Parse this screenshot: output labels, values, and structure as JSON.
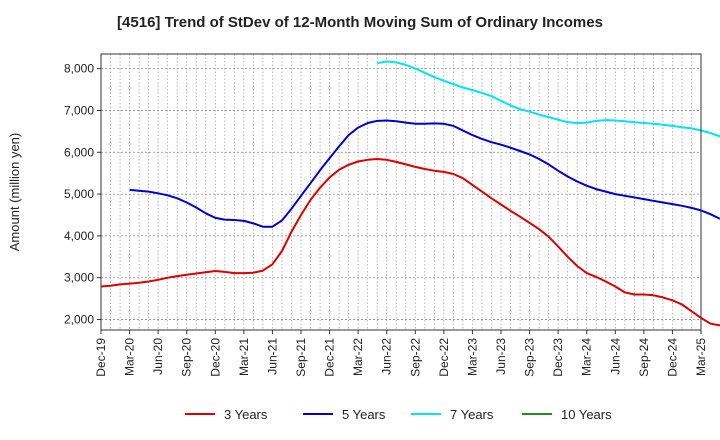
{
  "chart_data": {
    "type": "line",
    "title": "[4516]  Trend of StDev of 12-Month Moving Sum of Ordinary Incomes",
    "ylabel": "Amount (million yen)",
    "xlabel": "",
    "ylim": [
      1750,
      8350
    ],
    "yticks": [
      2000,
      3000,
      4000,
      5000,
      6000,
      7000,
      8000
    ],
    "ytick_labels": [
      "2,000",
      "3,000",
      "4,000",
      "5,000",
      "6,000",
      "7,000",
      "8,000"
    ],
    "xticks": [
      "Dec-19",
      "Mar-20",
      "Jun-20",
      "Sep-20",
      "Dec-20",
      "Mar-21",
      "Jun-21",
      "Sep-21",
      "Dec-21",
      "Mar-22",
      "Jun-22",
      "Sep-22",
      "Dec-22",
      "Mar-23",
      "Jun-23",
      "Sep-23",
      "Dec-23",
      "Mar-24",
      "Jun-24",
      "Sep-24",
      "Dec-24",
      "Mar-25"
    ],
    "grid": true,
    "legend_position": "bottom",
    "series": [
      {
        "name": "3 Years",
        "color": "#dd0000",
        "points": [
          [
            0,
            2790
          ],
          [
            1,
            2810
          ],
          [
            2,
            2840
          ],
          [
            3,
            2860
          ],
          [
            4,
            2880
          ],
          [
            5,
            2910
          ],
          [
            6,
            2950
          ],
          [
            7,
            3000
          ],
          [
            8,
            3040
          ],
          [
            9,
            3070
          ],
          [
            10,
            3100
          ],
          [
            11,
            3130
          ],
          [
            12,
            3160
          ],
          [
            13,
            3140
          ],
          [
            14,
            3110
          ],
          [
            15,
            3110
          ],
          [
            16,
            3120
          ],
          [
            17,
            3170
          ],
          [
            18,
            3320
          ],
          [
            19,
            3640
          ],
          [
            20,
            4100
          ],
          [
            21,
            4500
          ],
          [
            22,
            4860
          ],
          [
            23,
            5150
          ],
          [
            24,
            5400
          ],
          [
            25,
            5580
          ],
          [
            26,
            5700
          ],
          [
            27,
            5780
          ],
          [
            28,
            5820
          ],
          [
            29,
            5840
          ],
          [
            30,
            5820
          ],
          [
            31,
            5770
          ],
          [
            32,
            5710
          ],
          [
            33,
            5650
          ],
          [
            34,
            5600
          ],
          [
            35,
            5560
          ],
          [
            36,
            5530
          ],
          [
            37,
            5480
          ],
          [
            38,
            5380
          ],
          [
            39,
            5220
          ],
          [
            40,
            5060
          ],
          [
            41,
            4900
          ],
          [
            42,
            4750
          ],
          [
            43,
            4600
          ],
          [
            44,
            4460
          ],
          [
            45,
            4310
          ],
          [
            46,
            4160
          ],
          [
            47,
            3980
          ],
          [
            48,
            3750
          ],
          [
            49,
            3500
          ],
          [
            50,
            3280
          ],
          [
            51,
            3110
          ],
          [
            52,
            3020
          ],
          [
            53,
            2910
          ],
          [
            54,
            2790
          ],
          [
            55,
            2650
          ],
          [
            56,
            2600
          ],
          [
            57,
            2600
          ],
          [
            58,
            2580
          ],
          [
            59,
            2530
          ],
          [
            60,
            2460
          ],
          [
            61,
            2360
          ],
          [
            62,
            2200
          ],
          [
            63,
            2040
          ],
          [
            64,
            1900
          ],
          [
            65,
            1860
          ]
        ]
      },
      {
        "name": "5 Years",
        "color": "#0000cc",
        "points": [
          [
            3,
            5100
          ],
          [
            4,
            5080
          ],
          [
            5,
            5060
          ],
          [
            6,
            5020
          ],
          [
            7,
            4970
          ],
          [
            8,
            4900
          ],
          [
            9,
            4800
          ],
          [
            10,
            4680
          ],
          [
            11,
            4540
          ],
          [
            12,
            4430
          ],
          [
            13,
            4390
          ],
          [
            14,
            4380
          ],
          [
            15,
            4360
          ],
          [
            16,
            4300
          ],
          [
            17,
            4220
          ],
          [
            18,
            4220
          ],
          [
            19,
            4370
          ],
          [
            20,
            4650
          ],
          [
            21,
            4960
          ],
          [
            22,
            5260
          ],
          [
            23,
            5570
          ],
          [
            24,
            5860
          ],
          [
            25,
            6140
          ],
          [
            26,
            6410
          ],
          [
            27,
            6590
          ],
          [
            28,
            6700
          ],
          [
            29,
            6750
          ],
          [
            30,
            6760
          ],
          [
            31,
            6740
          ],
          [
            32,
            6710
          ],
          [
            33,
            6680
          ],
          [
            34,
            6680
          ],
          [
            35,
            6690
          ],
          [
            36,
            6680
          ],
          [
            37,
            6630
          ],
          [
            38,
            6520
          ],
          [
            39,
            6410
          ],
          [
            40,
            6320
          ],
          [
            41,
            6240
          ],
          [
            42,
            6180
          ],
          [
            43,
            6110
          ],
          [
            44,
            6030
          ],
          [
            45,
            5950
          ],
          [
            46,
            5840
          ],
          [
            47,
            5710
          ],
          [
            48,
            5560
          ],
          [
            49,
            5420
          ],
          [
            50,
            5300
          ],
          [
            51,
            5200
          ],
          [
            52,
            5120
          ],
          [
            53,
            5060
          ],
          [
            54,
            5000
          ],
          [
            55,
            4960
          ],
          [
            56,
            4920
          ],
          [
            57,
            4880
          ],
          [
            58,
            4840
          ],
          [
            59,
            4800
          ],
          [
            60,
            4760
          ],
          [
            61,
            4720
          ],
          [
            62,
            4670
          ],
          [
            63,
            4610
          ],
          [
            64,
            4520
          ],
          [
            65,
            4410
          ]
        ]
      },
      {
        "name": "7 Years",
        "color": "#00e5ee",
        "points": [
          [
            29,
            8130
          ],
          [
            30,
            8170
          ],
          [
            31,
            8150
          ],
          [
            32,
            8090
          ],
          [
            33,
            8000
          ],
          [
            34,
            7900
          ],
          [
            35,
            7800
          ],
          [
            36,
            7710
          ],
          [
            37,
            7630
          ],
          [
            38,
            7550
          ],
          [
            39,
            7490
          ],
          [
            40,
            7420
          ],
          [
            41,
            7340
          ],
          [
            42,
            7230
          ],
          [
            43,
            7120
          ],
          [
            44,
            7030
          ],
          [
            45,
            6970
          ],
          [
            46,
            6900
          ],
          [
            47,
            6840
          ],
          [
            48,
            6780
          ],
          [
            49,
            6720
          ],
          [
            50,
            6700
          ],
          [
            51,
            6710
          ],
          [
            52,
            6750
          ],
          [
            53,
            6770
          ],
          [
            54,
            6760
          ],
          [
            55,
            6740
          ],
          [
            56,
            6720
          ],
          [
            57,
            6700
          ],
          [
            58,
            6680
          ],
          [
            59,
            6660
          ],
          [
            60,
            6630
          ],
          [
            61,
            6600
          ],
          [
            62,
            6570
          ],
          [
            63,
            6520
          ],
          [
            64,
            6460
          ],
          [
            65,
            6380
          ]
        ]
      },
      {
        "name": "10 Years",
        "color": "#228b22",
        "points": []
      }
    ]
  }
}
